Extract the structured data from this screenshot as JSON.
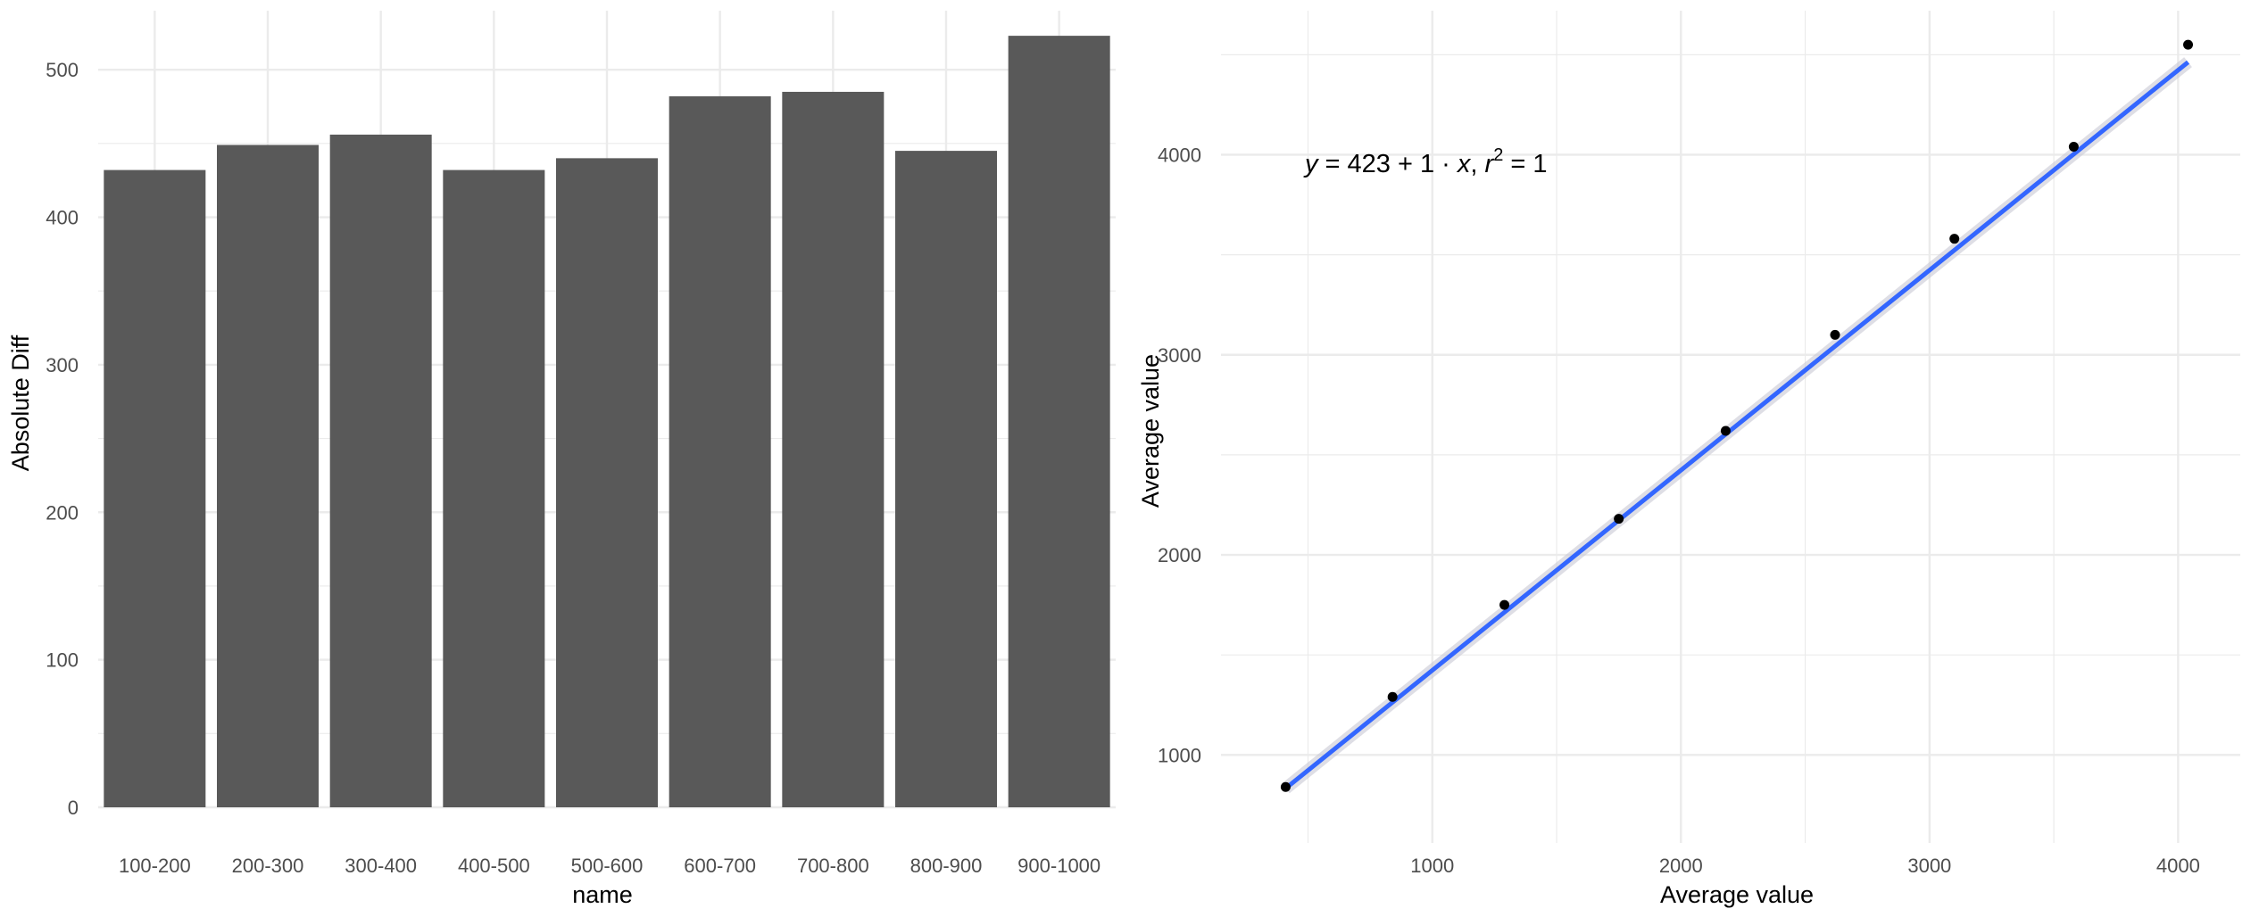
{
  "chart_data": [
    {
      "type": "bar",
      "xlabel": "name",
      "ylabel": "Absolute Diff",
      "categories": [
        "100-200",
        "200-300",
        "300-400",
        "400-500",
        "500-600",
        "600-700",
        "700-800",
        "800-900",
        "900-1000"
      ],
      "values": [
        432,
        449,
        456,
        432,
        440,
        482,
        485,
        445,
        523
      ],
      "ylim": [
        0,
        540
      ],
      "yticks": [
        0,
        100,
        200,
        300,
        400,
        500
      ],
      "grid": true,
      "colors": {
        "bar": "#595959",
        "grid": "#ebebeb"
      }
    },
    {
      "type": "scatter",
      "xlabel": "Average value",
      "ylabel": "Average value",
      "x": [
        410,
        840,
        1290,
        1750,
        2180,
        2620,
        3100,
        3580,
        4040
      ],
      "y": [
        840,
        1290,
        1750,
        2180,
        2620,
        3100,
        3580,
        4040,
        4550
      ],
      "xlim": [
        150,
        4250
      ],
      "ylim": [
        560,
        4720
      ],
      "xticks": [
        1000,
        2000,
        3000,
        4000
      ],
      "yticks": [
        1000,
        2000,
        3000,
        4000
      ],
      "grid": true,
      "trendline": {
        "intercept": 423,
        "slope": 1,
        "color": "#3366ff",
        "band_color": "#c8c8d4"
      },
      "annotation": {
        "y": "y",
        "eq": " = 423 + 1 · ",
        "x": "x",
        "sep": ",  ",
        "r": "r",
        "sup": "2",
        "rhs": " = 1"
      },
      "colors": {
        "point": "#000000",
        "grid": "#ebebeb"
      }
    }
  ]
}
